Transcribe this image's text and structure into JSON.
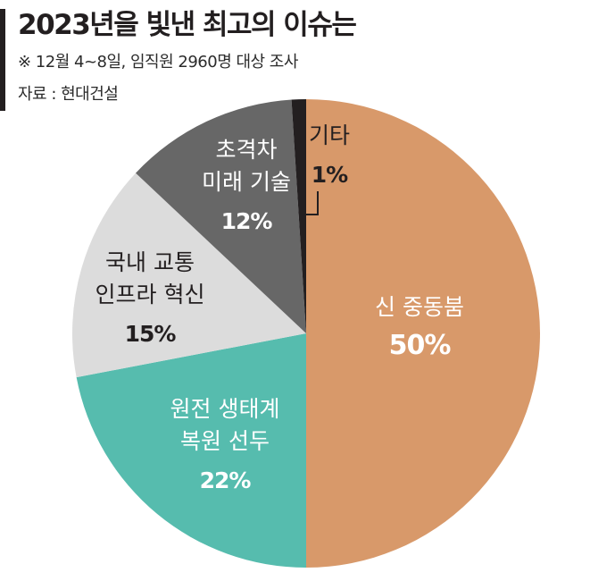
{
  "header": {
    "title": "2023년을 빛낸 최고의 이슈는",
    "note": "※ 12월 4~8일, 임직원 2960명 대상 조사",
    "source": "자료 : 현대건설"
  },
  "chart_data": {
    "type": "pie",
    "unit": "%",
    "slices": [
      {
        "lines": [
          "신 중동붐"
        ],
        "value": 50,
        "label": "50%",
        "color": "#d8996a",
        "text_color": "#ffffff"
      },
      {
        "lines": [
          "원전 생태계",
          "복원 선두"
        ],
        "value": 22,
        "label": "22%",
        "color": "#56bcae",
        "text_color": "#ffffff"
      },
      {
        "lines": [
          "국내 교통",
          "인프라 혁신"
        ],
        "value": 15,
        "label": "15%",
        "color": "#dcdcdc",
        "text_color": "#231f20"
      },
      {
        "lines": [
          "초격차",
          "미래 기술"
        ],
        "value": 12,
        "label": "12%",
        "color": "#676767",
        "text_color": "#ffffff"
      },
      {
        "lines": [
          "기타"
        ],
        "value": 1,
        "label": "1%",
        "color": "#231f20",
        "text_color": "#231f20"
      }
    ]
  }
}
